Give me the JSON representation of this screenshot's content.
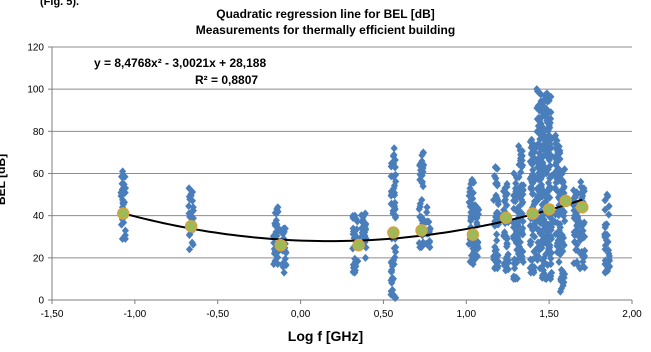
{
  "caption": "(Fig. 5).",
  "chart_data": {
    "type": "scatter",
    "title": "Quadratic regression line for BEL [dB]",
    "subtitle": "Measurements for thermally efficient building",
    "xlabel": "Log f [GHz]",
    "ylabel": "BEL [dB]",
    "xlim": [
      -1.5,
      2.0
    ],
    "ylim": [
      0,
      120
    ],
    "x_ticks": [
      "-1,50",
      "-1,00",
      "-0,50",
      "0,00",
      "0,50",
      "1,00",
      "1,50",
      "2,00"
    ],
    "y_ticks": [
      "0",
      "20",
      "40",
      "60",
      "80",
      "100",
      "120"
    ],
    "grid": "horizontal",
    "equation": "y = 8,4768x² - 3,0021x + 28,188",
    "r_squared": "R² = 0,8807",
    "regression": {
      "a": 8.4768,
      "b": -3.0021,
      "c": 28.188,
      "x_range": [
        -1.07,
        1.7
      ]
    },
    "measurement_colour": "#4a7ebb",
    "mean_colour": "#9bbb59",
    "line_colour": "#000000",
    "measurement_columns": [
      {
        "x": -1.07,
        "min": 29,
        "max": 61
      },
      {
        "x": -0.66,
        "min": 24,
        "max": 53
      },
      {
        "x": -0.15,
        "min": 17,
        "max": 44
      },
      {
        "x": -0.1,
        "min": 13,
        "max": 34
      },
      {
        "x": 0.33,
        "min": 13,
        "max": 40
      },
      {
        "x": 0.38,
        "min": 20,
        "max": 41
      },
      {
        "x": 0.56,
        "min": 1,
        "max": 72
      },
      {
        "x": 0.73,
        "min": 25,
        "max": 70
      },
      {
        "x": 0.77,
        "min": 25,
        "max": 44
      },
      {
        "x": 1.03,
        "min": 17,
        "max": 57
      },
      {
        "x": 1.06,
        "min": 20,
        "max": 45
      },
      {
        "x": 1.18,
        "min": 15,
        "max": 63
      },
      {
        "x": 1.24,
        "min": 14,
        "max": 55
      },
      {
        "x": 1.3,
        "min": 10,
        "max": 60
      },
      {
        "x": 1.33,
        "min": 18,
        "max": 73
      },
      {
        "x": 1.4,
        "min": 13,
        "max": 76
      },
      {
        "x": 1.44,
        "min": 15,
        "max": 100
      },
      {
        "x": 1.47,
        "min": 10,
        "max": 97
      },
      {
        "x": 1.5,
        "min": 10,
        "max": 98
      },
      {
        "x": 1.55,
        "min": 18,
        "max": 78
      },
      {
        "x": 1.58,
        "min": 4,
        "max": 62
      },
      {
        "x": 1.66,
        "min": 17,
        "max": 52
      },
      {
        "x": 1.7,
        "min": 15,
        "max": 56
      },
      {
        "x": 1.85,
        "min": 13,
        "max": 50
      }
    ],
    "mean_points": [
      {
        "x": -1.07,
        "y": 41
      },
      {
        "x": -0.66,
        "y": 35
      },
      {
        "x": -0.12,
        "y": 26
      },
      {
        "x": 0.35,
        "y": 26
      },
      {
        "x": 0.56,
        "y": 32
      },
      {
        "x": 0.73,
        "y": 33
      },
      {
        "x": 1.04,
        "y": 31
      },
      {
        "x": 1.24,
        "y": 39
      },
      {
        "x": 1.4,
        "y": 41
      },
      {
        "x": 1.5,
        "y": 43
      },
      {
        "x": 1.6,
        "y": 47
      },
      {
        "x": 1.7,
        "y": 44
      }
    ]
  }
}
